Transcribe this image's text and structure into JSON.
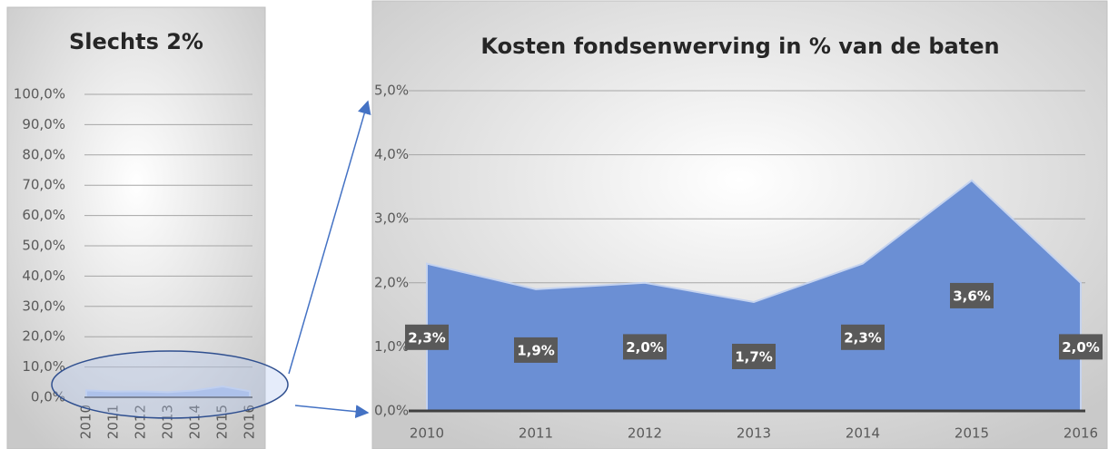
{
  "chart_data": [
    {
      "type": "area",
      "title": "Slechts 2%",
      "categories": [
        "2010",
        "2011",
        "2012",
        "2013",
        "2014",
        "2015",
        "2016"
      ],
      "values": [
        2.3,
        1.9,
        2.0,
        1.7,
        2.3,
        3.6,
        2.0
      ],
      "color": "#a9bde6",
      "ylim": [
        0,
        100
      ],
      "yticks": [
        {
          "value": 0,
          "label": "0,0%"
        },
        {
          "value": 10,
          "label": "10,0%"
        },
        {
          "value": 20,
          "label": "20,0%"
        },
        {
          "value": 30,
          "label": "30,0%"
        },
        {
          "value": 40,
          "label": "40,0%"
        },
        {
          "value": 50,
          "label": "50,0%"
        },
        {
          "value": 60,
          "label": "60,0%"
        },
        {
          "value": 70,
          "label": "70,0%"
        },
        {
          "value": 80,
          "label": "80,0%"
        },
        {
          "value": 90,
          "label": "90,0%"
        },
        {
          "value": 100,
          "label": "100,0%"
        }
      ],
      "grid": true
    },
    {
      "type": "area",
      "title": "Kosten fondsenwerving in % van de baten",
      "categories": [
        "2010",
        "2011",
        "2012",
        "2013",
        "2014",
        "2015",
        "2016"
      ],
      "values": [
        2.3,
        1.9,
        2.0,
        1.7,
        2.3,
        3.6,
        2.0
      ],
      "value_labels": [
        "2,3%",
        "1,9%",
        "2,0%",
        "1,7%",
        "2,3%",
        "3,6%",
        "2,0%"
      ],
      "color": "#6b8fd4",
      "ylim": [
        0,
        5
      ],
      "yticks": [
        {
          "value": 0,
          "label": "0,0%"
        },
        {
          "value": 1,
          "label": "1,0%"
        },
        {
          "value": 2,
          "label": "2,0%"
        },
        {
          "value": 3,
          "label": "3,0%"
        },
        {
          "value": 4,
          "label": "4,0%"
        },
        {
          "value": 5,
          "label": "5,0%"
        }
      ],
      "grid": true
    }
  ]
}
